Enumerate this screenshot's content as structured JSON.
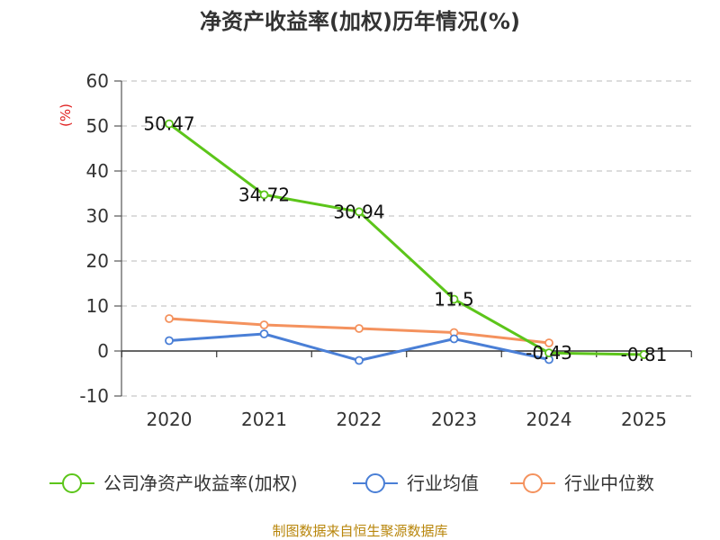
{
  "chart_data": {
    "type": "line",
    "title": "净资产收益率(加权)历年情况(%)",
    "xlabel": "",
    "ylabel": "(%)",
    "categories": [
      "2020",
      "2021",
      "2022",
      "2023",
      "2024",
      "2025"
    ],
    "ylim": [
      -10,
      60
    ],
    "yticks": [
      60,
      50,
      40,
      30,
      20,
      10,
      0,
      -10
    ],
    "grid": true,
    "legend_position": "bottom",
    "series": [
      {
        "name": "公司净资产收益率(加权)",
        "color": "#5cc51a",
        "values": [
          50.47,
          34.72,
          30.94,
          11.5,
          -0.43,
          -0.81
        ],
        "labels": [
          "50.47",
          "34.72",
          "30.94",
          "11.5",
          "-0.43",
          "-0.81"
        ]
      },
      {
        "name": "行业均值",
        "color": "#4a7fd6",
        "values": [
          2.3,
          3.8,
          -2.1,
          2.7,
          -1.9,
          null
        ]
      },
      {
        "name": "行业中位数",
        "color": "#f4925e",
        "values": [
          7.2,
          5.8,
          5.0,
          4.1,
          1.8,
          null
        ]
      }
    ],
    "source": "制图数据来自恒生聚源数据库"
  }
}
